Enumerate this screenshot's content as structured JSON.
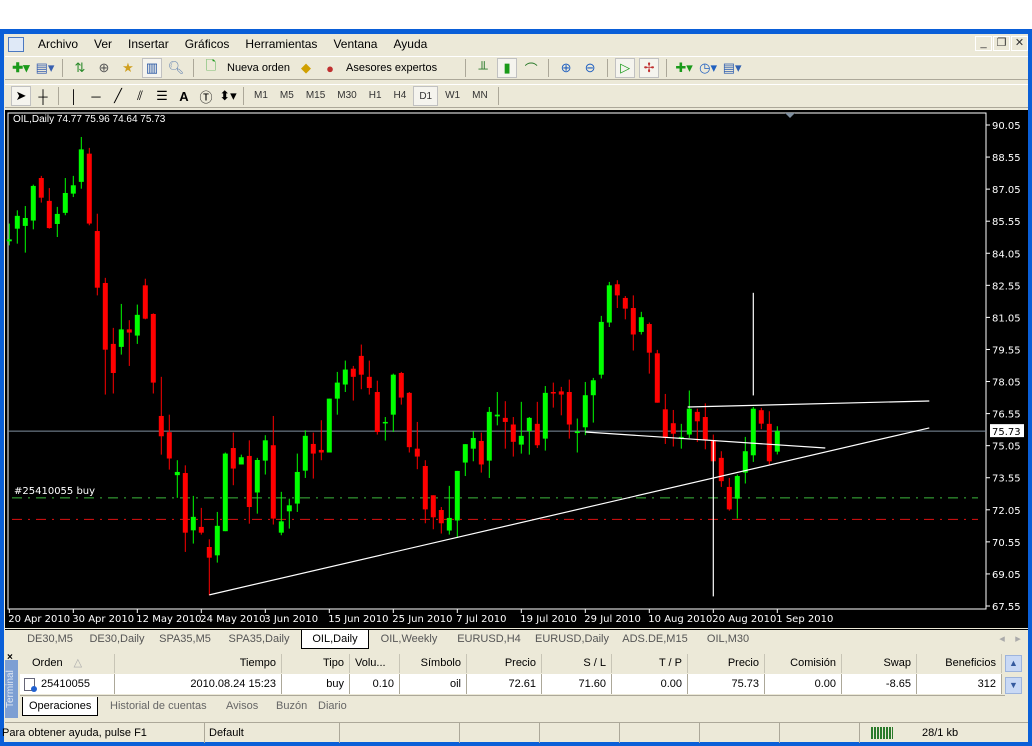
{
  "menu": {
    "items": [
      "Archivo",
      "Ver",
      "Insertar",
      "Gráficos",
      "Herramientas",
      "Ventana",
      "Ayuda"
    ]
  },
  "toolbar": {
    "new_order": "Nueva orden",
    "experts": "Asesores expertos"
  },
  "timeframes": [
    "M1",
    "M5",
    "M15",
    "M30",
    "H1",
    "H4",
    "D1",
    "W1",
    "MN"
  ],
  "active_timeframe": "D1",
  "chart": {
    "header": "OIL,Daily  74.77 75.96 74.64 75.73",
    "order_label": "#25410055 buy",
    "current_price": "75.73",
    "colors": {
      "bull": "#00ff00",
      "bear": "#ff0000",
      "background": "#000000",
      "buy_line": "#3cb83c",
      "sl_line": "#e01010",
      "price_line": "#8090a0"
    }
  },
  "chart_data": {
    "type": "candlestick",
    "symbol": "OIL",
    "timeframe": "Daily",
    "ylim": [
      67.55,
      90.05
    ],
    "y_ticks": [
      "90.05",
      "88.55",
      "87.05",
      "85.55",
      "84.05",
      "82.55",
      "81.05",
      "79.55",
      "78.05",
      "76.55",
      "75.05",
      "73.55",
      "72.05",
      "70.55",
      "69.05",
      "67.55"
    ],
    "x_ticks": [
      "20 Apr 2010",
      "30 Apr 2010",
      "12 May 2010",
      "24 May 2010",
      "3 Jun 2010",
      "15 Jun 2010",
      "25 Jun 2010",
      "7 Jul 2010",
      "19 Jul 2010",
      "29 Jul 2010",
      "10 Aug 2010",
      "20 Aug 2010",
      "1 Sep 2010"
    ],
    "open": [
      84.61,
      85.2,
      85.33,
      85.58,
      87.57,
      86.5,
      85.42,
      85.94,
      86.84,
      87.39,
      88.71,
      85.09,
      82.66,
      79.81,
      79.67,
      80.49,
      80.2,
      82.55,
      81.21,
      76.44,
      75.68,
      73.67,
      73.77,
      71.09,
      71.25,
      70.31,
      69.92,
      71.05,
      74.94,
      74.17,
      74.57,
      72.86,
      74.35,
      75.07,
      70.98,
      71.98,
      72.34,
      73.88,
      75.13,
      74.85,
      74.73,
      77.25,
      77.91,
      78.65,
      79.25,
      78.27,
      77.56,
      76.14,
      76.5,
      78.45,
      77.52,
      74.91,
      74.1,
      72.73,
      72.04,
      71.08,
      71.55,
      74.26,
      74.91,
      75.27,
      74.35,
      76.42,
      76.35,
      76.04,
      75.1,
      75.74,
      76.07,
      75.38,
      77.56,
      77.59,
      77.56,
      75.66,
      75.91,
      77.41,
      78.37,
      80.81,
      82.6,
      81.96,
      81.49,
      80.37,
      80.74,
      79.37,
      76.75,
      76.1,
      75.38,
      75.57,
      76.63,
      76.39,
      75.29,
      74.48,
      73.12,
      72.57,
      73.79,
      74.6,
      76.71,
      76.07,
      74.77
    ],
    "high": [
      85.44,
      86.06,
      86.26,
      87.26,
      87.67,
      87.1,
      86.22,
      87.57,
      87.67,
      89.49,
      88.98,
      85.9,
      82.9,
      80.56,
      81.68,
      80.92,
      81.65,
      82.86,
      81.24,
      78.27,
      76.5,
      74.37,
      74.13,
      72.7,
      72.14,
      70.67,
      71.95,
      74.73,
      75.66,
      74.63,
      75.3,
      74.48,
      75.54,
      76.44,
      72.89,
      72.57,
      74.68,
      75.77,
      75.66,
      76.24,
      77.25,
      78.5,
      79.03,
      78.78,
      79.78,
      79.03,
      78.09,
      76.39,
      78.42,
      78.5,
      77.56,
      76.16,
      74.37,
      72.73,
      72.18,
      73.17,
      73.87,
      75.12,
      75.72,
      75.66,
      76.86,
      77.56,
      77.13,
      76.39,
      77.1,
      76.39,
      77.1,
      77.84,
      78.0,
      77.8,
      78.14,
      76.32,
      78.03,
      78.22,
      81.12,
      82.71,
      82.79,
      82.05,
      82.08,
      81.31,
      80.81,
      79.53,
      77.47,
      76.72,
      76.07,
      77.63,
      76.78,
      77.03,
      75.57,
      74.79,
      73.54,
      73.7,
      75.46,
      76.86,
      76.82,
      76.66,
      75.96
    ],
    "low": [
      84.42,
      84.5,
      84.08,
      85.17,
      86.42,
      85.2,
      84.81,
      85.83,
      86.68,
      87.07,
      85.36,
      82.08,
      77.44,
      77.49,
      79.31,
      78.78,
      79.81,
      80.96,
      77.49,
      74.63,
      73.93,
      72.61,
      70.08,
      70.47,
      70.89,
      68.05,
      69.58,
      71.05,
      73.2,
      74.17,
      71.4,
      71.87,
      73.7,
      71.36,
      70.86,
      71.17,
      71.95,
      73.54,
      73.51,
      74.37,
      74.73,
      76.5,
      77.56,
      77.16,
      77.69,
      77.44,
      75.57,
      75.29,
      75.69,
      76.97,
      74.73,
      73.95,
      71.42,
      71.14,
      70.94,
      70.89,
      70.73,
      73.63,
      74.32,
      73.79,
      73.54,
      76.0,
      74.91,
      74.54,
      74.68,
      74.63,
      74.94,
      74.82,
      76.83,
      76.47,
      75.38,
      74.73,
      75.54,
      76.13,
      78.19,
      80.6,
      81.49,
      80.96,
      79.5,
      80.25,
      78.42,
      77.06,
      75.13,
      75.01,
      74.91,
      75.41,
      75.22,
      74.88,
      74.32,
      73.12,
      72.01,
      71.64,
      73.28,
      74.29,
      75.82,
      74.17,
      74.64
    ],
    "close": [
      84.7,
      85.8,
      85.7,
      87.2,
      86.65,
      85.23,
      85.89,
      86.87,
      87.23,
      88.91,
      85.44,
      82.44,
      79.54,
      78.45,
      80.49,
      80.34,
      81.17,
      80.99,
      78.0,
      75.49,
      74.45,
      73.82,
      70.98,
      71.72,
      70.98,
      69.81,
      71.3,
      74.68,
      73.98,
      74.51,
      72.18,
      74.38,
      75.3,
      71.64,
      71.51,
      72.26,
      73.82,
      75.51,
      74.68,
      74.73,
      77.25,
      78.0,
      78.61,
      78.27,
      78.37,
      77.75,
      75.69,
      76.16,
      78.37,
      77.3,
      74.98,
      74.54,
      72.07,
      71.7,
      71.42,
      71.67,
      73.87,
      75.12,
      75.41,
      74.17,
      76.63,
      76.5,
      76.16,
      75.23,
      75.51,
      76.35,
      75.07,
      77.52,
      77.52,
      77.44,
      76.04,
      75.71,
      77.41,
      78.11,
      80.84,
      82.55,
      82.08,
      81.46,
      80.25,
      81.06,
      79.4,
      77.06,
      75.41,
      75.61,
      75.46,
      76.78,
      76.19,
      75.3,
      74.32,
      73.39,
      72.07,
      73.63,
      74.79,
      76.78,
      76.08,
      74.32,
      75.73
    ],
    "order_price": 72.61,
    "stop_loss": 71.6,
    "last_price": 75.73
  },
  "chart_tabs": [
    "DE30,M5",
    "DE30,Daily",
    "SPA35,M5",
    "SPA35,Daily",
    "OIL,Daily",
    "OIL,Weekly",
    "EURUSD,H4",
    "EURUSD,Daily",
    "ADS.DE,M15",
    "OIL,M30"
  ],
  "active_chart_tab": "OIL,Daily",
  "terminal": {
    "side_label": "Terminal",
    "columns": [
      "Orden",
      "Tiempo",
      "Tipo",
      "Volu...",
      "Símbolo",
      "Precio",
      "S / L",
      "T / P",
      "Precio",
      "Comisión",
      "Swap",
      "Beneficios"
    ],
    "sort_indicator": "△",
    "rows": [
      [
        "25410055",
        "2010.08.24 15:23",
        "buy",
        "0.10",
        "oil",
        "72.61",
        "71.60",
        "0.00",
        "75.73",
        "0.00",
        "-8.65",
        "312"
      ]
    ],
    "tabs": [
      "Operaciones",
      "Historial de cuentas",
      "Avisos",
      "Buzón",
      "Diario"
    ],
    "active_tab": "Operaciones"
  },
  "status": {
    "help": "Para obtener ayuda, pulse F1",
    "profile": "Default",
    "traffic": "28/1 kb"
  }
}
